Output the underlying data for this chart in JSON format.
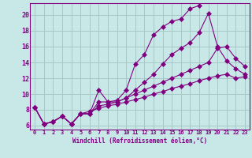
{
  "background_color": "#c8e8e8",
  "grid_color": "#a8c8c8",
  "line_color": "#800080",
  "xlabel": "Windchill (Refroidissement éolien,°C)",
  "xlim": [
    -0.5,
    23.5
  ],
  "ylim": [
    5.5,
    21.5
  ],
  "yticks": [
    6,
    8,
    10,
    12,
    14,
    16,
    18,
    20
  ],
  "xticks": [
    0,
    1,
    2,
    3,
    4,
    5,
    6,
    7,
    8,
    9,
    10,
    11,
    12,
    13,
    14,
    15,
    16,
    17,
    18,
    19,
    20,
    21,
    22,
    23
  ],
  "line1_x": [
    0,
    1,
    2,
    3,
    4,
    5,
    6,
    7,
    8,
    9,
    10,
    11,
    12,
    13,
    14,
    15,
    16,
    17,
    18
  ],
  "line1_y": [
    8.3,
    6.2,
    6.5,
    7.2,
    6.2,
    7.5,
    7.5,
    10.5,
    9.0,
    9.2,
    10.5,
    13.8,
    15.0,
    17.5,
    18.5,
    19.2,
    19.5,
    20.8,
    21.2
  ],
  "line2_x": [
    0,
    1,
    2,
    3,
    4,
    5,
    6,
    7,
    8,
    9,
    10,
    11,
    12,
    13,
    14,
    15,
    16,
    17,
    18,
    19,
    20,
    21,
    22,
    23
  ],
  "line2_y": [
    8.3,
    6.2,
    6.5,
    7.2,
    6.2,
    7.5,
    7.5,
    9.0,
    9.0,
    9.0,
    9.5,
    10.5,
    11.5,
    12.5,
    13.8,
    15.0,
    15.8,
    16.5,
    17.8,
    20.2,
    16.0,
    14.2,
    13.2,
    12.5
  ],
  "line3_x": [
    0,
    1,
    2,
    3,
    4,
    5,
    6,
    7,
    8,
    9,
    10,
    11,
    12,
    13,
    14,
    15,
    16,
    17,
    18,
    19,
    20,
    21,
    22,
    23
  ],
  "line3_y": [
    8.3,
    6.2,
    6.5,
    7.2,
    6.2,
    7.5,
    7.5,
    8.5,
    8.7,
    9.0,
    9.5,
    10.0,
    10.5,
    11.0,
    11.5,
    12.0,
    12.5,
    13.0,
    13.5,
    14.0,
    15.8,
    16.0,
    14.5,
    13.5
  ],
  "line4_x": [
    0,
    1,
    2,
    3,
    4,
    5,
    6,
    7,
    8,
    9,
    10,
    11,
    12,
    13,
    14,
    15,
    16,
    17,
    18,
    19,
    20,
    21,
    22,
    23
  ],
  "line4_y": [
    8.3,
    6.2,
    6.5,
    7.2,
    6.2,
    7.5,
    7.8,
    8.2,
    8.5,
    8.7,
    9.0,
    9.3,
    9.6,
    10.0,
    10.3,
    10.7,
    11.0,
    11.3,
    11.7,
    12.0,
    12.3,
    12.5,
    12.0,
    12.2
  ]
}
